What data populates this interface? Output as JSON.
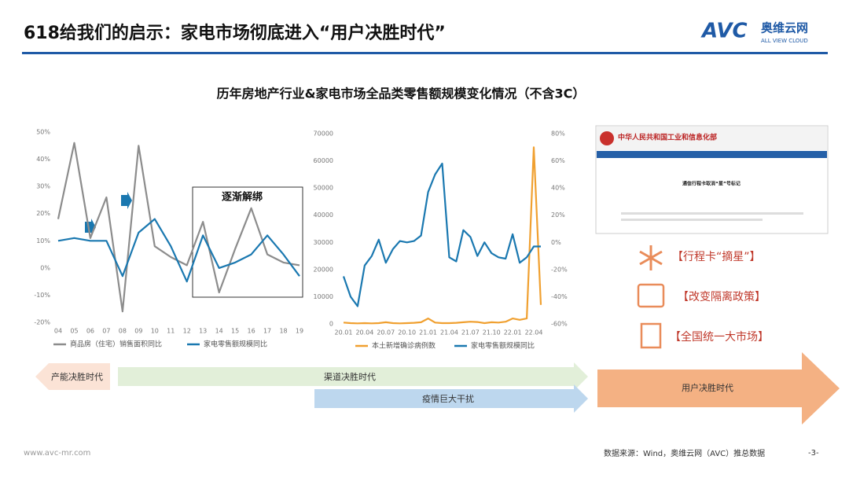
{
  "header": {
    "title": "618给我们的启示：家电市场彻底进入“用户决胜时代”",
    "logo": "AVC",
    "logo_cn": "奥维云网",
    "logo_en": "ALL VIEW CLOUD"
  },
  "main_title": "历年房地产行业&家电市场全品类零售额规模变化情况（不含3C）",
  "chart_data": [
    {
      "type": "line",
      "categories": [
        "04",
        "05",
        "06",
        "07",
        "08",
        "09",
        "10",
        "11",
        "12",
        "13",
        "14",
        "15",
        "16",
        "17",
        "18",
        "19"
      ],
      "series": [
        {
          "name": "商品房（住宅）销售面积同比",
          "color": "#8c8c8c",
          "values": [
            18,
            46,
            11,
            26,
            -16,
            45,
            8,
            4,
            1,
            17,
            -9,
            7,
            22,
            5,
            2,
            1
          ]
        },
        {
          "name": "家电零售额规模同比",
          "color": "#1a78b0",
          "values": [
            10,
            11,
            10,
            10,
            -3,
            13,
            18,
            8,
            -5,
            12,
            0,
            2,
            5,
            12,
            5,
            -3
          ]
        }
      ],
      "ylim": [
        -20,
        50
      ],
      "yticks": [
        {
          "value": -20,
          "label": "-20%"
        },
        {
          "value": -10,
          "label": "-10%"
        },
        {
          "value": 0,
          "label": "0%"
        },
        {
          "value": 10,
          "label": "10%"
        },
        {
          "value": 20,
          "label": "20%"
        },
        {
          "value": 30,
          "label": "30%"
        },
        {
          "value": 40,
          "label": "40%"
        },
        {
          "value": 50,
          "label": "50%"
        }
      ],
      "annotation": "逐渐解绑"
    },
    {
      "type": "line",
      "categories": [
        "20.01",
        null,
        null,
        "20.04",
        null,
        null,
        "20.07",
        null,
        null,
        "20.10",
        null,
        null,
        "21.01",
        null,
        null,
        "21.04",
        null,
        null,
        "21.07",
        null,
        null,
        "21.10",
        null,
        null,
        "22.01",
        null,
        null,
        "22.04",
        null
      ],
      "series": [
        {
          "name": "本土新增确诊病例数",
          "color": "#f0a030",
          "values": [
            500,
            300,
            200,
            300,
            200,
            300,
            600,
            300,
            200,
            300,
            400,
            600,
            2000,
            500,
            300,
            300,
            400,
            600,
            800,
            700,
            300,
            600,
            500,
            800,
            2000,
            1500,
            2000,
            65000,
            7000
          ]
        },
        {
          "name": "家电零售额规模同比",
          "color": "#1a78b0",
          "axis": "y2",
          "values": [
            -25,
            -40,
            -47,
            -17,
            -10,
            2,
            -15,
            -5,
            1,
            0,
            1,
            5,
            37,
            50,
            58,
            -11,
            -14,
            9,
            4,
            -10,
            0,
            -8,
            -11,
            -12,
            6,
            -15,
            -11,
            -3,
            -3
          ]
        }
      ],
      "ylim": [
        0,
        70000
      ],
      "yticks": [
        0,
        10000,
        20000,
        30000,
        40000,
        50000,
        60000,
        70000
      ],
      "y2lim": [
        -60,
        80
      ],
      "y2ticks": [
        {
          "value": -60,
          "label": "-60%"
        },
        {
          "value": -40,
          "label": "-40%"
        },
        {
          "value": -20,
          "label": "-20%"
        },
        {
          "value": 0,
          "label": "0%"
        },
        {
          "value": 20,
          "label": "20%"
        },
        {
          "value": 40,
          "label": "40%"
        },
        {
          "value": 60,
          "label": "60%"
        },
        {
          "value": 80,
          "label": "80%"
        }
      ]
    }
  ],
  "site_image": {
    "title": "中华人民共和国工业和信息化部",
    "headline": "通信行程卡取消“星”号标记"
  },
  "measures": [
    "【行程卡“摘星”】",
    "【改变隔离政策】",
    "【全国统一大市场】"
  ],
  "phases": [
    "产能决胜时代",
    "渠道决胜时代",
    "疫情巨大干扰",
    "用户决胜时代"
  ],
  "footer": {
    "site": "www.avc-mr.com",
    "source": "数据来源：Wind，奥维云网（AVC）推总数据",
    "page": "-3-"
  }
}
